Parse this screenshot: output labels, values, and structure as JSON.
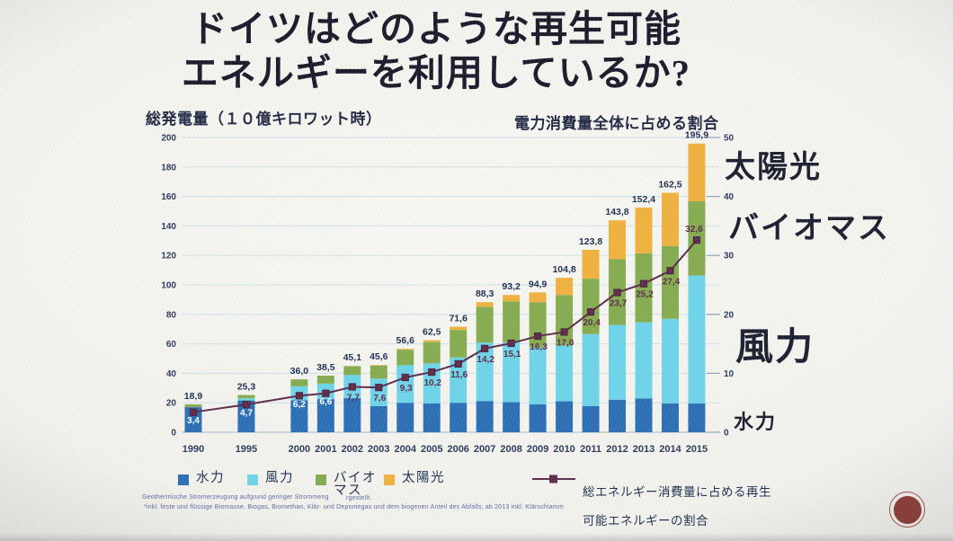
{
  "slide": {
    "title_line1": "ドイツはどのような再生可能",
    "title_line2": "エネルギーを利用しているか?",
    "left_axis_caption": "総発電量（１０億キロワット時）",
    "right_axis_caption": "電力消費量全体に占める割合"
  },
  "annotations": {
    "solar": "太陽光",
    "biomass": "バイオマス",
    "wind": "風力",
    "hydro": "水力"
  },
  "legend": {
    "items": [
      {
        "key": "hydro",
        "label": "水力",
        "color": "#2d6fb5"
      },
      {
        "key": "wind",
        "label": "風力",
        "color": "#6fd4e8"
      },
      {
        "key": "biomass",
        "label": "バイオ\nマス",
        "color": "#86ac50"
      },
      {
        "key": "solar",
        "label": "太陽光",
        "color": "#f0b13f"
      }
    ],
    "line_item": {
      "label_line1": "総エネルギー消費量に占める再生",
      "label_line2": "可能エネルギーの割合",
      "color": "#5f2b4b"
    }
  },
  "footnotes": {
    "line1_left": "Geothermische Stromerzeugung aufgrund geringer Strommeng",
    "line1_right": "rgestellt.",
    "line2": "*inkl. feste und flüssige Biomasse, Biogas, Biomethan, Klär- und Deponiegas und dem biogenen Anteil des Abfalls; ab 2013 inkl. Klärschlamm"
  },
  "logo": {
    "color": "#8c3a34"
  },
  "chart_data": {
    "type": "bar",
    "subtype": "stacked-bars-with-line",
    "title": "ドイツはどのような再生可能エネルギーを利用しているか?",
    "ylabel_left": "総発電量（１０億キロワット時）",
    "ylabel_right": "電力消費量全体に占める割合",
    "categories": [
      "1990",
      "1995",
      "2000",
      "2001",
      "2002",
      "2003",
      "2004",
      "2005",
      "2006",
      "2007",
      "2008",
      "2009",
      "2010",
      "2011",
      "2012",
      "2013",
      "2014",
      "2015"
    ],
    "series": [
      {
        "key": "hydro",
        "name": "水力",
        "color": "#2d6fb5",
        "values": [
          17.0,
          21.6,
          21.7,
          22.5,
          23.1,
          17.7,
          20.0,
          19.6,
          20.0,
          21.2,
          20.4,
          19.0,
          21.0,
          17.7,
          22.1,
          22.9,
          19.6,
          19.5
        ]
      },
      {
        "key": "wind",
        "name": "風力",
        "color": "#6fd4e8",
        "values": [
          0.1,
          1.5,
          9.5,
          10.5,
          15.8,
          18.7,
          25.5,
          27.2,
          30.7,
          39.7,
          40.6,
          38.6,
          37.8,
          48.9,
          50.7,
          51.7,
          57.4,
          86.9
        ]
      },
      {
        "key": "biomass",
        "name": "バイオマス",
        "color": "#86ac50",
        "values": [
          1.8,
          2.2,
          4.7,
          5.4,
          6.0,
          8.9,
          10.5,
          14.4,
          18.7,
          24.3,
          27.8,
          30.7,
          34.3,
          37.6,
          44.6,
          46.8,
          49.4,
          50.3
        ]
      },
      {
        "key": "solar",
        "name": "太陽光",
        "color": "#f0b13f",
        "values": [
          0.0,
          0.0,
          0.1,
          0.1,
          0.2,
          0.3,
          0.6,
          1.3,
          2.2,
          3.1,
          4.4,
          6.6,
          11.7,
          19.6,
          26.4,
          31.0,
          36.1,
          39.2
        ]
      }
    ],
    "totals": [
      18.9,
      25.3,
      36.0,
      38.5,
      45.1,
      45.6,
      56.6,
      62.5,
      71.6,
      88.3,
      93.2,
      94.9,
      104.8,
      123.8,
      143.8,
      152.4,
      162.5,
      195.9
    ],
    "totals_labels": [
      "18,9",
      "25,3",
      "36,0",
      "38,5",
      "45,1",
      "45,6",
      "56,6",
      "62,5",
      "71,6",
      "88,3",
      "93,2",
      "94,9",
      "104,8",
      "123,8",
      "143,8",
      "152,4",
      "162,5",
      "195,9"
    ],
    "line": {
      "name": "総エネルギー消費量に占める再生可能エネルギーの割合",
      "axis": "right",
      "color": "#5f2b4b",
      "values": [
        3.4,
        4.7,
        6.2,
        6.6,
        7.7,
        7.6,
        9.3,
        10.2,
        11.6,
        14.2,
        15.1,
        16.3,
        17.0,
        20.4,
        23.7,
        25.2,
        27.4,
        32.6
      ],
      "labels": [
        "3,4",
        "4,7",
        "6,2",
        "6,6",
        "7,7",
        "7,6",
        "9,3",
        "10,2",
        "11,6",
        "14,2",
        "15,1",
        "16,3",
        "17,0",
        "20,4",
        "23,7",
        "25,2",
        "27,4",
        "32,6"
      ]
    },
    "left_axis": {
      "max": 200,
      "ticks": [
        0,
        20,
        40,
        60,
        80,
        100,
        120,
        140,
        160,
        180,
        200
      ]
    },
    "right_axis": {
      "max": 50,
      "ticks": [
        0,
        10,
        20,
        30,
        40,
        50
      ]
    },
    "grid": "horizontal",
    "grid_color": "#cde0eb",
    "axis_zero_color": "#a3b8c6",
    "axis_text_color": "#2c3a5e",
    "total_label_color": "#1e2f52",
    "line_label_dark_color": "#5e2b48",
    "line_label_light_color": "#ffffff",
    "legend_position": "bottom"
  }
}
